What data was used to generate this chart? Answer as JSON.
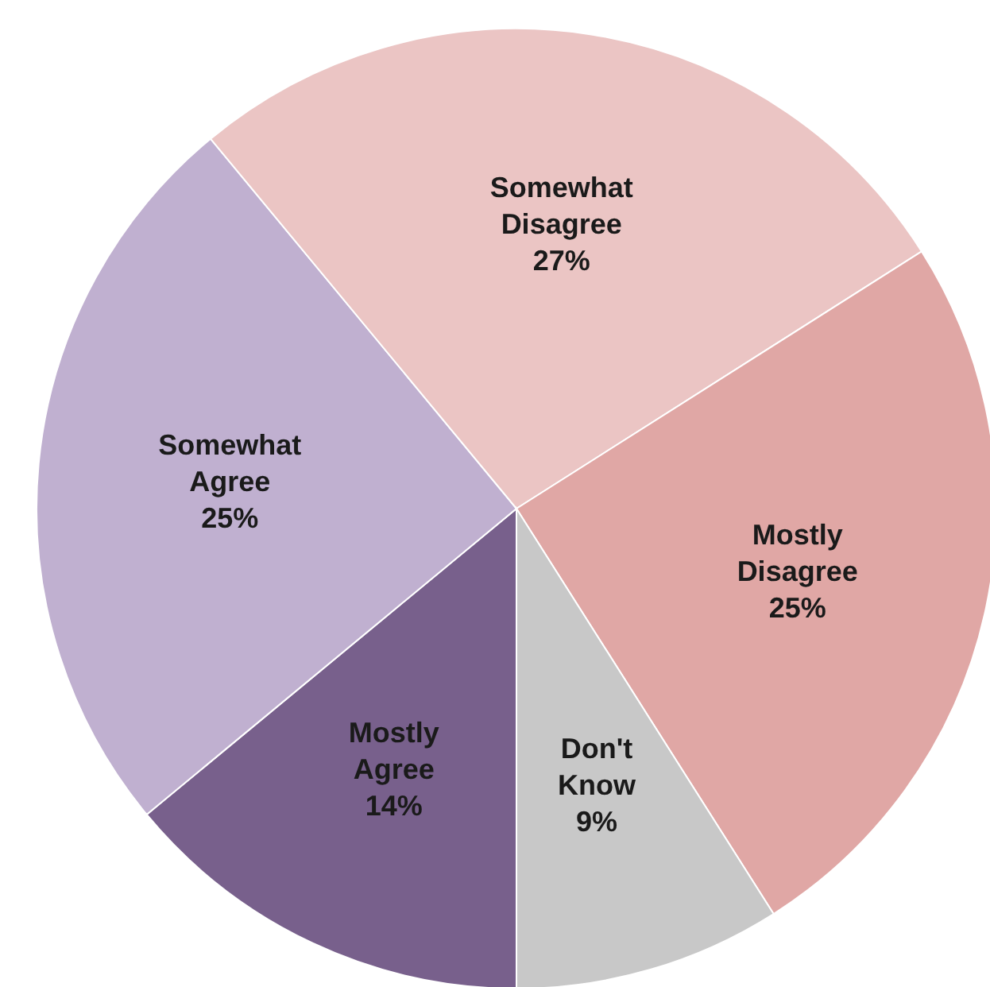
{
  "chart_data": {
    "type": "pie",
    "categories": [
      "Mostly Agree",
      "Somewhat Agree",
      "Somewhat Disagree",
      "Mostly Disagree",
      "Don't Know"
    ],
    "values": [
      14,
      25,
      27,
      25,
      9
    ],
    "colors": [
      "#78608c",
      "#c0b0d0",
      "#ebc5c4",
      "#e0a7a5",
      "#c8c8c8"
    ],
    "value_labels": [
      "14%",
      "25%",
      "27%",
      "25%",
      "9%"
    ],
    "legend": false
  }
}
